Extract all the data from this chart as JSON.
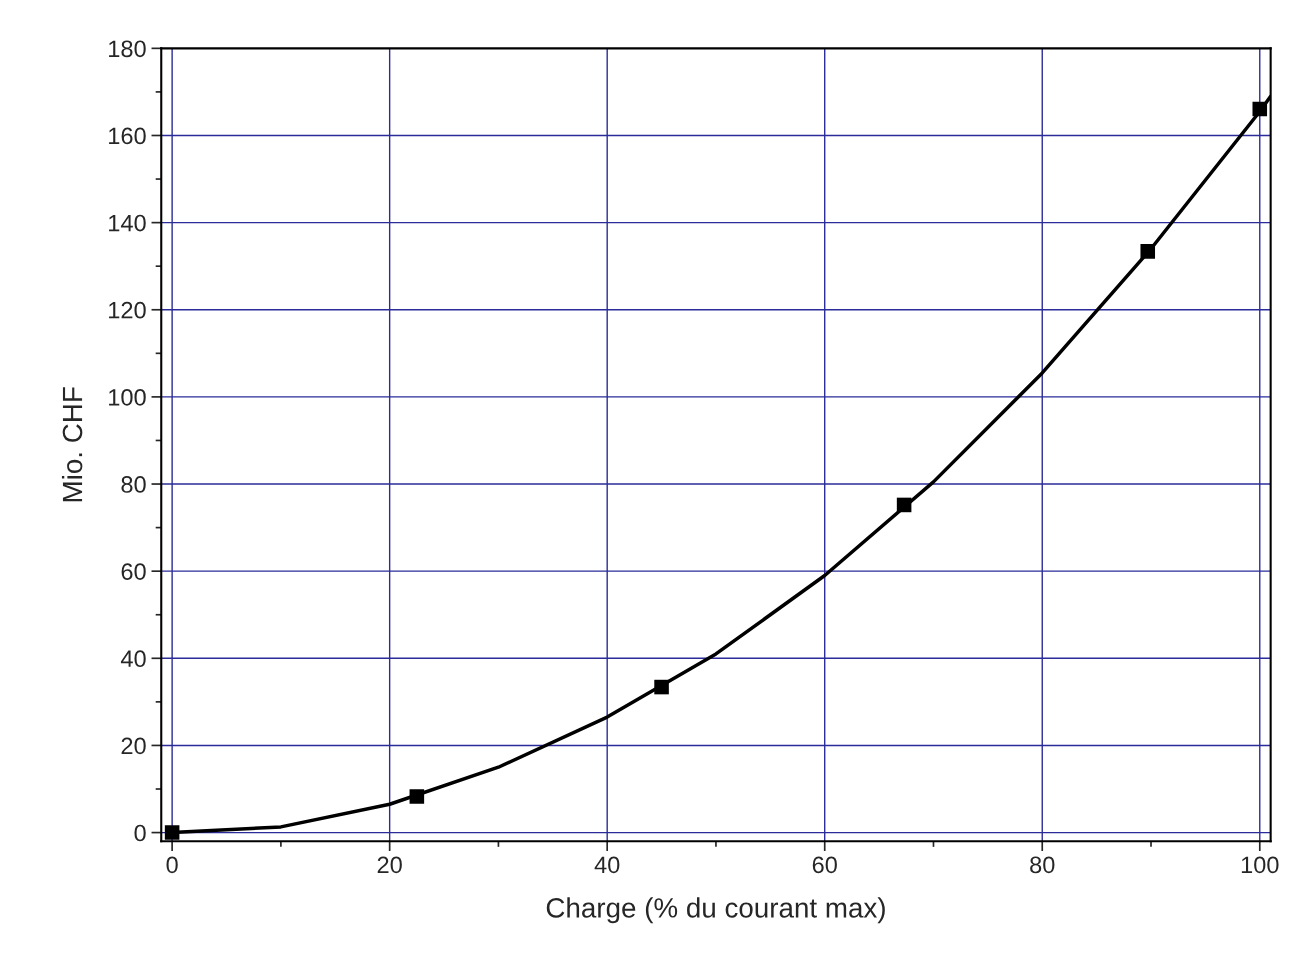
{
  "chart_data": {
    "type": "scatter",
    "xlabel": "Charge (% du courant max)",
    "ylabel": "Mio. CHF",
    "xlim": [
      -1,
      101
    ],
    "ylim": [
      -2,
      180
    ],
    "xticks": [
      0,
      {
        "value": 10,
        "label": null
      },
      20,
      {
        "value": 30,
        "label": null
      },
      40,
      {
        "value": 50,
        "label": null
      },
      60,
      {
        "value": 70,
        "label": null
      },
      80,
      {
        "value": 90,
        "label": null
      },
      100
    ],
    "yticks": [
      0,
      {
        "value": 10,
        "label": null
      },
      20,
      {
        "value": 30,
        "label": null
      },
      40,
      {
        "value": 50,
        "label": null
      },
      60,
      {
        "value": 70,
        "label": null
      },
      80,
      {
        "value": 90,
        "label": null
      },
      100,
      {
        "value": 110,
        "label": null
      },
      120,
      {
        "value": 130,
        "label": null
      },
      140,
      {
        "value": 150,
        "label": null
      },
      160,
      {
        "value": 170,
        "label": null
      },
      180
    ],
    "grid": true,
    "series": [
      {
        "marker": "square",
        "color": "#000000",
        "x": [
          0,
          22.5,
          45,
          67.3,
          89.7,
          100
        ],
        "values": [
          0,
          8.3,
          33.4,
          75.2,
          133.4,
          166.1
        ]
      },
      {
        "type": "line",
        "marker": "none",
        "line_style": "solid",
        "color": "#000000",
        "x": [
          0,
          10,
          20,
          30,
          40,
          50,
          60,
          70,
          80,
          90,
          100,
          101
        ],
        "values": [
          0,
          1.3,
          6.5,
          15,
          26.5,
          41,
          59,
          80.5,
          105.5,
          134,
          165.5,
          169
        ]
      }
    ]
  }
}
